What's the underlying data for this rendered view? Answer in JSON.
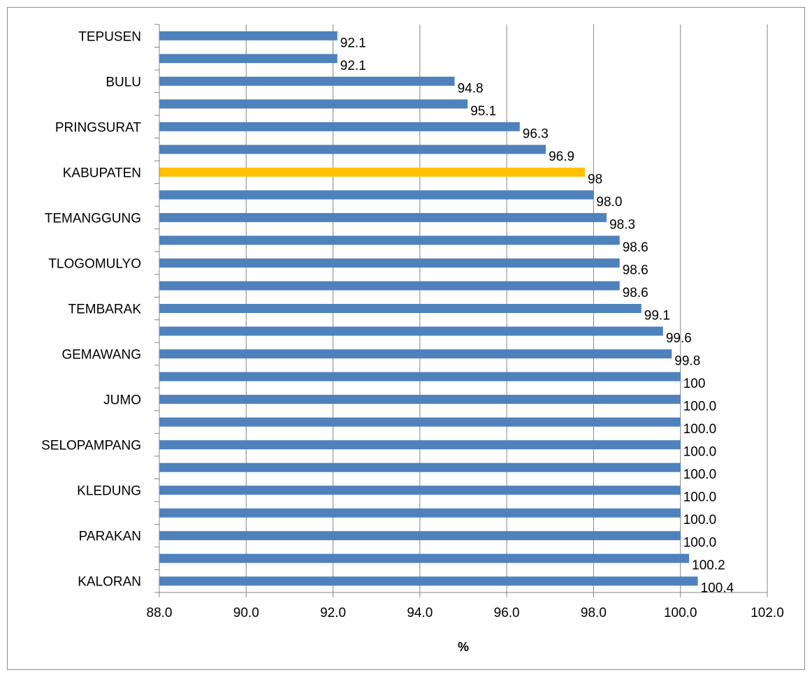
{
  "chart_data": {
    "type": "bar",
    "orientation": "horizontal",
    "categories": [
      "TEPUSEN",
      "",
      "BULU",
      "",
      "PRINGSURAT",
      "",
      "KABUPATEN",
      "",
      "TEMANGGUNG",
      "",
      "TLOGOMULYO",
      "",
      "TEMBARAK",
      "",
      "GEMAWANG",
      "",
      "JUMO",
      "",
      "SELOPAMPANG",
      "",
      "KLEDUNG",
      "",
      "PARAKAN",
      "",
      "KALORAN"
    ],
    "values": [
      92.1,
      92.1,
      94.8,
      95.1,
      96.3,
      96.9,
      97.8,
      98.0,
      98.3,
      98.6,
      98.6,
      98.6,
      99.1,
      99.6,
      99.8,
      100,
      100.0,
      100.0,
      100.0,
      100.0,
      100.0,
      100.0,
      100.0,
      100.2,
      100.4
    ],
    "data_labels": [
      "92.1",
      "92.1",
      "94.8",
      "95.1",
      "96.3",
      "96.9",
      "98",
      "98.0",
      "98.3",
      "98.6",
      "98.6",
      "98.6",
      "99.1",
      "99.6",
      "99.8",
      "100",
      "100.0",
      "100.0",
      "100.0",
      "100.0",
      "100.0",
      "100.0",
      "100.0",
      "100.2",
      "100.4"
    ],
    "bar_colors": [
      "#4f81bd",
      "#4f81bd",
      "#4f81bd",
      "#4f81bd",
      "#4f81bd",
      "#4f81bd",
      "#ffc000",
      "#4f81bd",
      "#4f81bd",
      "#4f81bd",
      "#4f81bd",
      "#4f81bd",
      "#4f81bd",
      "#4f81bd",
      "#4f81bd",
      "#4f81bd",
      "#4f81bd",
      "#4f81bd",
      "#4f81bd",
      "#4f81bd",
      "#4f81bd",
      "#4f81bd",
      "#4f81bd",
      "#4f81bd",
      "#4f81bd"
    ],
    "xlim": [
      88.0,
      102.0
    ],
    "xticks": [
      "88.0",
      "90.0",
      "92.0",
      "94.0",
      "96.0",
      "98.0",
      "100.0",
      "102.0"
    ],
    "xlabel": "%",
    "ylabel": "",
    "title": "",
    "grid": "vertical",
    "legend": "none",
    "colors": {
      "primary": "#4f81bd",
      "highlight": "#ffc000",
      "grid": "#868686"
    }
  }
}
